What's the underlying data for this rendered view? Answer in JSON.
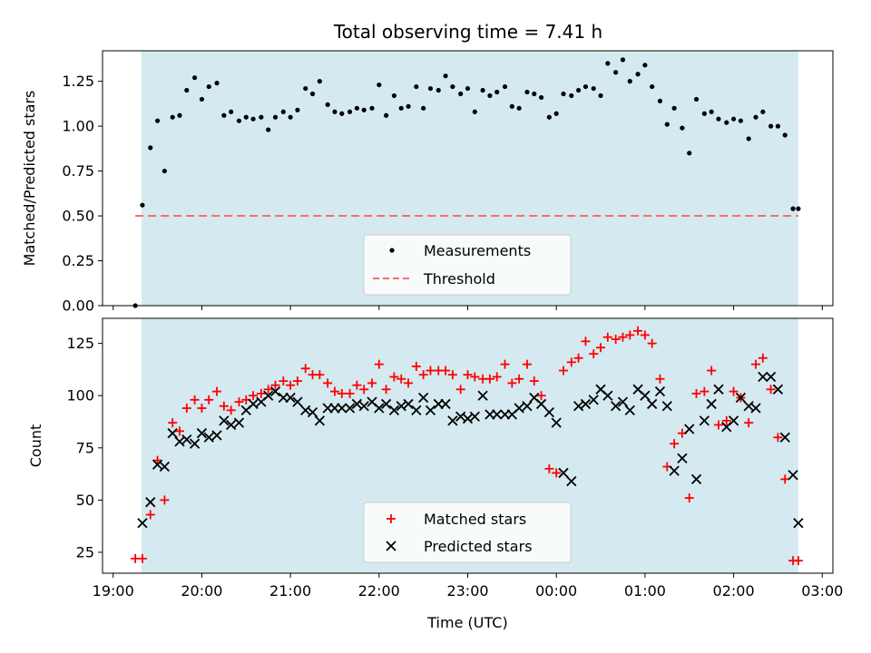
{
  "chart_data": {
    "title": "Total observing time = 7.41 h",
    "xlabel": "Time (UTC)",
    "x_tick_labels": [
      "19:00",
      "20:00",
      "21:00",
      "22:00",
      "23:00",
      "00:00",
      "01:00",
      "02:00",
      "03:00"
    ],
    "x_tick_hours": [
      19,
      20,
      21,
      22,
      23,
      24,
      25,
      26,
      27
    ],
    "xlim_hours": [
      18.88,
      27.12
    ],
    "night_span_hours": [
      19.32,
      26.73
    ],
    "night_span_color": "#d4eaf0",
    "panels": [
      {
        "type": "scatter",
        "ylabel": "Matched/Predicted stars",
        "ylim": [
          0,
          1.42
        ],
        "yticks": [
          0.0,
          0.25,
          0.5,
          0.75,
          1.0,
          1.25
        ],
        "y_tick_labels": [
          "0.00",
          "0.25",
          "0.50",
          "0.75",
          "1.00",
          "1.25"
        ],
        "legend_position": "lower-center",
        "series": [
          {
            "name": "Measurements",
            "marker": "dot",
            "color": "#000000",
            "x_hours": [
              19.25,
              19.33,
              19.42,
              19.5,
              19.58,
              19.67,
              19.75,
              19.83,
              19.92,
              20.0,
              20.08,
              20.17,
              20.25,
              20.33,
              20.42,
              20.5,
              20.58,
              20.67,
              20.75,
              20.83,
              20.92,
              21.0,
              21.08,
              21.17,
              21.25,
              21.33,
              21.42,
              21.5,
              21.58,
              21.67,
              21.75,
              21.83,
              21.92,
              22.0,
              22.08,
              22.17,
              22.25,
              22.33,
              22.42,
              22.5,
              22.58,
              22.67,
              22.75,
              22.83,
              22.92,
              23.0,
              23.08,
              23.17,
              23.25,
              23.33,
              23.42,
              23.5,
              23.58,
              23.67,
              23.75,
              23.83,
              23.92,
              24.0,
              24.08,
              24.17,
              24.25,
              24.33,
              24.42,
              24.5,
              24.58,
              24.67,
              24.75,
              24.83,
              24.92,
              25.0,
              25.08,
              25.17,
              25.25,
              25.33,
              25.42,
              25.5,
              25.58,
              25.67,
              25.75,
              25.83,
              25.92,
              26.0,
              26.08,
              26.17,
              26.25,
              26.33,
              26.42,
              26.5,
              26.58,
              26.67,
              26.73
            ],
            "y": [
              0.0,
              0.56,
              0.88,
              1.03,
              0.75,
              1.05,
              1.06,
              1.2,
              1.27,
              1.15,
              1.22,
              1.24,
              1.06,
              1.08,
              1.03,
              1.05,
              1.04,
              1.05,
              0.98,
              1.05,
              1.08,
              1.05,
              1.09,
              1.21,
              1.18,
              1.25,
              1.12,
              1.08,
              1.07,
              1.08,
              1.1,
              1.09,
              1.1,
              1.23,
              1.06,
              1.17,
              1.1,
              1.11,
              1.22,
              1.1,
              1.21,
              1.2,
              1.28,
              1.22,
              1.18,
              1.21,
              1.08,
              1.2,
              1.17,
              1.19,
              1.22,
              1.11,
              1.1,
              1.19,
              1.18,
              1.16,
              1.05,
              1.07,
              1.18,
              1.17,
              1.2,
              1.22,
              1.21,
              1.17,
              1.35,
              1.3,
              1.37,
              1.25,
              1.29,
              1.34,
              1.22,
              1.14,
              1.01,
              1.1,
              0.99,
              0.85,
              1.15,
              1.07,
              1.08,
              1.04,
              1.02,
              1.04,
              1.03,
              0.93,
              1.05,
              1.08,
              1.0,
              1.0,
              0.95,
              0.54,
              0.54
            ]
          },
          {
            "name": "Threshold",
            "marker": "dashed-line",
            "color": "#ff6b6b",
            "x_hours": [
              19.25,
              26.73
            ],
            "y": [
              0.5,
              0.5
            ]
          }
        ]
      },
      {
        "type": "scatter",
        "ylabel": "Count",
        "ylim": [
          15,
          137
        ],
        "yticks": [
          25,
          50,
          75,
          100,
          125
        ],
        "y_tick_labels": [
          "25",
          "50",
          "75",
          "100",
          "125"
        ],
        "legend_position": "lower-center",
        "series": [
          {
            "name": "Matched stars",
            "marker": "plus",
            "color": "#ff0000",
            "x_hours": [
              19.25,
              19.33,
              19.42,
              19.5,
              19.58,
              19.67,
              19.75,
              19.83,
              19.92,
              20.0,
              20.08,
              20.17,
              20.25,
              20.33,
              20.42,
              20.5,
              20.58,
              20.67,
              20.75,
              20.83,
              20.92,
              21.0,
              21.08,
              21.17,
              21.25,
              21.33,
              21.42,
              21.5,
              21.58,
              21.67,
              21.75,
              21.83,
              21.92,
              22.0,
              22.08,
              22.17,
              22.25,
              22.33,
              22.42,
              22.5,
              22.58,
              22.67,
              22.75,
              22.83,
              22.92,
              23.0,
              23.08,
              23.17,
              23.25,
              23.33,
              23.42,
              23.5,
              23.58,
              23.67,
              23.75,
              23.83,
              23.92,
              24.0,
              24.08,
              24.17,
              24.25,
              24.33,
              24.42,
              24.5,
              24.58,
              24.67,
              24.75,
              24.83,
              24.92,
              25.0,
              25.08,
              25.17,
              25.25,
              25.33,
              25.42,
              25.5,
              25.58,
              25.67,
              25.75,
              25.83,
              25.92,
              26.0,
              26.08,
              26.17,
              26.25,
              26.33,
              26.42,
              26.5,
              26.58,
              26.67,
              26.73
            ],
            "y": [
              22,
              22,
              43,
              69,
              50,
              87,
              83,
              94,
              98,
              94,
              98,
              102,
              95,
              93,
              97,
              98,
              100,
              101,
              103,
              105,
              107,
              105,
              107,
              113,
              110,
              110,
              106,
              102,
              101,
              101,
              105,
              103,
              106,
              115,
              103,
              109,
              108,
              106,
              114,
              110,
              112,
              112,
              112,
              110,
              103,
              110,
              109,
              108,
              108,
              109,
              115,
              106,
              108,
              115,
              107,
              100,
              65,
              63,
              112,
              116,
              118,
              126,
              120,
              123,
              128,
              127,
              128,
              129,
              131,
              129,
              125,
              108,
              66,
              77,
              82,
              51,
              101,
              102,
              112,
              86,
              88,
              102,
              99,
              87,
              115,
              118,
              103,
              80,
              60,
              21,
              21
            ]
          },
          {
            "name": "Predicted stars",
            "marker": "x",
            "color": "#000000",
            "x_hours": [
              19.33,
              19.42,
              19.5,
              19.58,
              19.67,
              19.75,
              19.83,
              19.92,
              20.0,
              20.08,
              20.17,
              20.25,
              20.33,
              20.42,
              20.5,
              20.58,
              20.67,
              20.75,
              20.83,
              20.92,
              21.0,
              21.08,
              21.17,
              21.25,
              21.33,
              21.42,
              21.5,
              21.58,
              21.67,
              21.75,
              21.83,
              21.92,
              22.0,
              22.08,
              22.17,
              22.25,
              22.33,
              22.42,
              22.5,
              22.58,
              22.67,
              22.75,
              22.83,
              22.92,
              23.0,
              23.08,
              23.17,
              23.25,
              23.33,
              23.42,
              23.5,
              23.58,
              23.67,
              23.75,
              23.83,
              23.92,
              24.0,
              24.08,
              24.17,
              24.25,
              24.33,
              24.42,
              24.5,
              24.58,
              24.67,
              24.75,
              24.83,
              24.92,
              25.0,
              25.08,
              25.17,
              25.25,
              25.33,
              25.42,
              25.5,
              25.58,
              25.67,
              25.75,
              25.83,
              25.92,
              26.0,
              26.08,
              26.17,
              26.25,
              26.33,
              26.42,
              26.5,
              26.58,
              26.67,
              26.73
            ],
            "y": [
              39,
              49,
              67,
              66,
              82,
              78,
              79,
              77,
              82,
              80,
              81,
              88,
              86,
              87,
              93,
              96,
              97,
              100,
              102,
              99,
              99,
              97,
              93,
              92,
              88,
              94,
              94,
              94,
              94,
              96,
              95,
              97,
              94,
              96,
              93,
              95,
              96,
              93,
              99,
              93,
              96,
              96,
              88,
              90,
              89,
              90,
              100,
              91,
              91,
              91,
              91,
              94,
              95,
              99,
              96,
              92,
              87,
              63,
              59,
              95,
              96,
              98,
              103,
              100,
              95,
              97,
              93,
              103,
              100,
              96,
              102,
              95,
              64,
              70,
              84,
              60,
              88,
              96,
              103,
              85,
              88,
              99,
              95,
              94,
              109,
              109,
              103,
              80,
              62,
              39
            ]
          }
        ]
      }
    ]
  }
}
